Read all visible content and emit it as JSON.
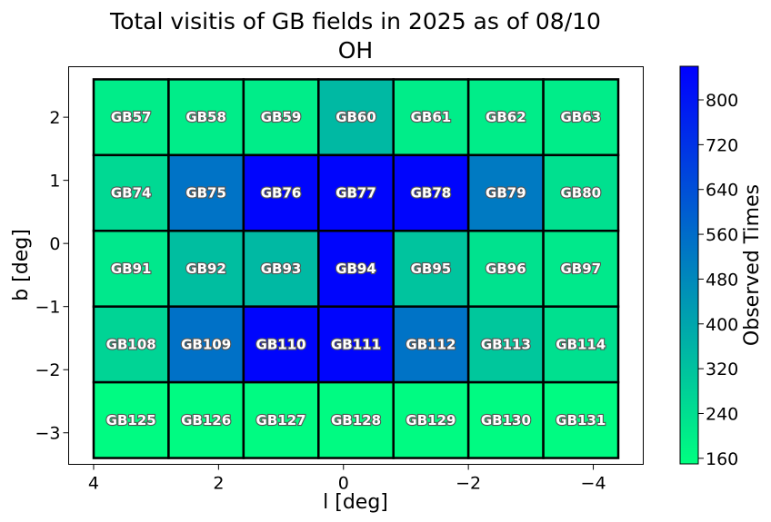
{
  "chart_data": {
    "type": "heatmap",
    "title": "Total visitis of GB fields in 2025 as of 08/10",
    "subtitle": "OH",
    "xlabel": "l [deg]",
    "ylabel": "b [deg]",
    "colorbar_label": "Observed Times",
    "xlim": [
      4.4,
      -4.8
    ],
    "ylim": [
      -3.5,
      2.8
    ],
    "x_ticks": [
      4,
      2,
      0,
      -2,
      -4
    ],
    "y_ticks": [
      2,
      1,
      0,
      -1,
      -2,
      -3
    ],
    "colorbar_range": [
      150,
      860
    ],
    "colorbar_ticks": [
      160,
      240,
      320,
      400,
      480,
      560,
      640,
      720,
      800
    ],
    "colormap": [
      "#00ff80",
      "#0000ff"
    ],
    "l_edges": [
      4.0,
      2.8,
      1.6,
      0.4,
      -0.8,
      -2.0,
      -3.2,
      -4.4
    ],
    "b_edges": [
      2.6,
      1.4,
      0.2,
      -1.0,
      -2.2,
      -3.4
    ],
    "rows": [
      {
        "b": 2.0,
        "cells": [
          {
            "label": "GB57",
            "value": 200
          },
          {
            "label": "GB58",
            "value": 200
          },
          {
            "label": "GB59",
            "value": 200
          },
          {
            "label": "GB60",
            "value": 345
          },
          {
            "label": "GB61",
            "value": 200
          },
          {
            "label": "GB62",
            "value": 200
          },
          {
            "label": "GB63",
            "value": 200
          }
        ]
      },
      {
        "b": 0.8,
        "cells": [
          {
            "label": "GB74",
            "value": 255
          },
          {
            "label": "GB75",
            "value": 540
          },
          {
            "label": "GB76",
            "value": 845
          },
          {
            "label": "GB77",
            "value": 845
          },
          {
            "label": "GB78",
            "value": 845
          },
          {
            "label": "GB79",
            "value": 520
          },
          {
            "label": "GB80",
            "value": 235
          }
        ]
      },
      {
        "b": -0.4,
        "cells": [
          {
            "label": "GB91",
            "value": 215
          },
          {
            "label": "GB92",
            "value": 330
          },
          {
            "label": "GB93",
            "value": 345
          },
          {
            "label": "GB94",
            "value": 845
          },
          {
            "label": "GB95",
            "value": 315
          },
          {
            "label": "GB96",
            "value": 230
          },
          {
            "label": "GB97",
            "value": 210
          }
        ]
      },
      {
        "b": -1.6,
        "cells": [
          {
            "label": "GB108",
            "value": 270
          },
          {
            "label": "GB109",
            "value": 545
          },
          {
            "label": "GB110",
            "value": 845
          },
          {
            "label": "GB111",
            "value": 845
          },
          {
            "label": "GB112",
            "value": 540
          },
          {
            "label": "GB113",
            "value": 305
          },
          {
            "label": "GB114",
            "value": 235
          }
        ]
      },
      {
        "b": -2.8,
        "cells": [
          {
            "label": "GB125",
            "value": 160
          },
          {
            "label": "GB126",
            "value": 160
          },
          {
            "label": "GB127",
            "value": 160
          },
          {
            "label": "GB128",
            "value": 160
          },
          {
            "label": "GB129",
            "value": 160
          },
          {
            "label": "GB130",
            "value": 160
          },
          {
            "label": "GB131",
            "value": 160
          }
        ]
      }
    ]
  }
}
